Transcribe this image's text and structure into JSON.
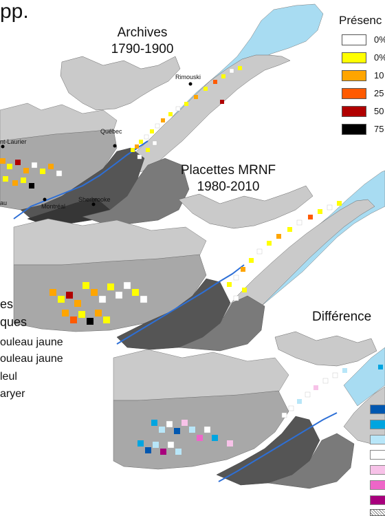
{
  "title_fragment": "pp.",
  "maps": {
    "archives": {
      "title_line1": "Archives",
      "title_line2": "1790-1900"
    },
    "mrnf": {
      "title_line1": "Placettes MRNF",
      "title_line2": "1980-2010"
    },
    "difference": {
      "title": "Différence"
    }
  },
  "cities": {
    "rimouski": "Rimouski",
    "quebec": "Québec",
    "laurier": "nt-Laurier",
    "montreal": "Montréal",
    "sherbrooke": "Sherbrooke",
    "au": "au"
  },
  "presence_legend": {
    "title": "Présenc",
    "items": [
      {
        "label": "0%",
        "color": "#ffffff"
      },
      {
        "label": "0%",
        "color": "#ffff00"
      },
      {
        "label": "10",
        "color": "#ffa500"
      },
      {
        "label": "25",
        "color": "#ff5a00"
      },
      {
        "label": "50",
        "color": "#b00000"
      },
      {
        "label": "75",
        "color": "#000000"
      }
    ]
  },
  "zones_legend": {
    "heading_line1": "es",
    "heading_line2": "ques",
    "items": [
      {
        "label": "ouleau jaune"
      },
      {
        "label": "ouleau jaune"
      },
      {
        "label": "leul"
      },
      {
        "label": "aryer"
      }
    ]
  },
  "difference_legend": {
    "colors": [
      "#0057b0",
      "#00a5e0",
      "#b8e6f8",
      "#ffffff",
      "#f7c2e8",
      "#ee66c8",
      "#a8007d"
    ]
  },
  "colors": {
    "water": "#a8dcf2",
    "river": "#2d6fd6",
    "zone_lightest": "#cacaca",
    "zone_light": "#a8a8a8",
    "zone_mid": "#7a7a7a",
    "zone_dark": "#555555",
    "zone_darkest": "#363636"
  }
}
